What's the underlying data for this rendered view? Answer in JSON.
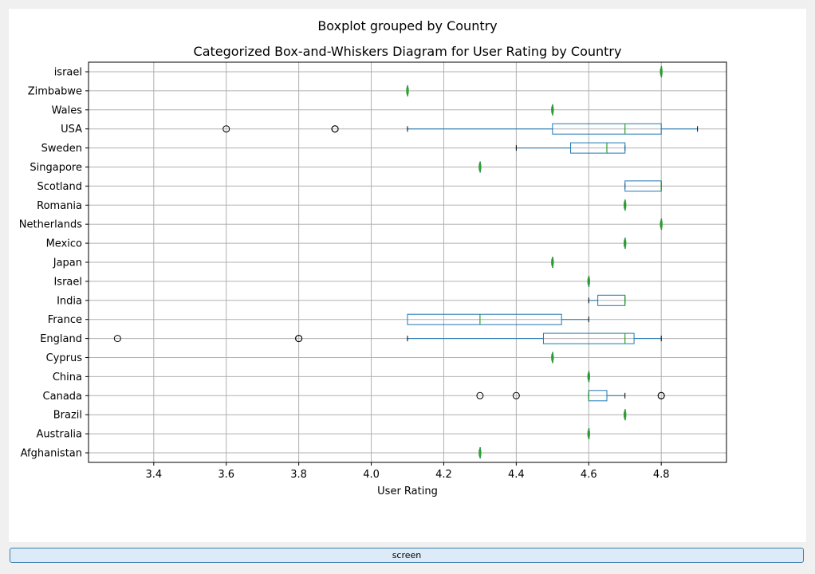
{
  "figure": {
    "suptitle": "Boxplot grouped by Country",
    "screen_button_label": "screen"
  },
  "chart_data": {
    "type": "boxplot",
    "orientation": "horizontal",
    "title": "Categorized Box-and-Whiskers Diagram for User Rating by Country",
    "xlabel": "User Rating",
    "ylabel": "",
    "xlim": [
      3.22,
      4.98
    ],
    "xticks": [
      "3.4",
      "3.6",
      "3.8",
      "4.0",
      "4.2",
      "4.4",
      "4.6",
      "4.8"
    ],
    "grid": true,
    "colors": {
      "box": "#1f77b4",
      "median": "#2ca02c",
      "outlier": "#000000",
      "grid": "#b0b0b0"
    },
    "categories": [
      "Afghanistan",
      "Australia",
      "Brazil",
      "Canada",
      "China",
      "Cyprus",
      "England",
      "France",
      "India",
      "Israel",
      "Japan",
      "Mexico",
      "Netherlands",
      "Romania",
      "Scotland",
      "Singapore",
      "Sweden",
      "USA",
      "Wales",
      "Zimbabwe",
      "israel"
    ],
    "boxes": [
      {
        "country": "Afghanistan",
        "whislo": 4.3,
        "q1": 4.3,
        "median": 4.3,
        "q3": 4.3,
        "whishi": 4.3,
        "fliers": []
      },
      {
        "country": "Australia",
        "whislo": 4.6,
        "q1": 4.6,
        "median": 4.6,
        "q3": 4.6,
        "whishi": 4.6,
        "fliers": []
      },
      {
        "country": "Brazil",
        "whislo": 4.7,
        "q1": 4.7,
        "median": 4.7,
        "q3": 4.7,
        "whishi": 4.7,
        "fliers": []
      },
      {
        "country": "Canada",
        "whislo": 4.6,
        "q1": 4.6,
        "median": 4.6,
        "q3": 4.65,
        "whishi": 4.7,
        "fliers": [
          4.3,
          4.4,
          4.8,
          4.8
        ]
      },
      {
        "country": "China",
        "whislo": 4.6,
        "q1": 4.6,
        "median": 4.6,
        "q3": 4.6,
        "whishi": 4.6,
        "fliers": []
      },
      {
        "country": "Cyprus",
        "whislo": 4.5,
        "q1": 4.5,
        "median": 4.5,
        "q3": 4.5,
        "whishi": 4.5,
        "fliers": []
      },
      {
        "country": "England",
        "whislo": 4.1,
        "q1": 4.475,
        "median": 4.7,
        "q3": 4.725,
        "whishi": 4.8,
        "fliers": [
          3.3,
          3.8,
          3.8
        ]
      },
      {
        "country": "France",
        "whislo": 4.1,
        "q1": 4.1,
        "median": 4.3,
        "q3": 4.525,
        "whishi": 4.6,
        "fliers": []
      },
      {
        "country": "India",
        "whislo": 4.6,
        "q1": 4.625,
        "median": 4.7,
        "q3": 4.7,
        "whishi": 4.7,
        "fliers": []
      },
      {
        "country": "Israel",
        "whislo": 4.6,
        "q1": 4.6,
        "median": 4.6,
        "q3": 4.6,
        "whishi": 4.6,
        "fliers": []
      },
      {
        "country": "Japan",
        "whislo": 4.5,
        "q1": 4.5,
        "median": 4.5,
        "q3": 4.5,
        "whishi": 4.5,
        "fliers": []
      },
      {
        "country": "Mexico",
        "whislo": 4.7,
        "q1": 4.7,
        "median": 4.7,
        "q3": 4.7,
        "whishi": 4.7,
        "fliers": []
      },
      {
        "country": "Netherlands",
        "whislo": 4.8,
        "q1": 4.8,
        "median": 4.8,
        "q3": 4.8,
        "whishi": 4.8,
        "fliers": []
      },
      {
        "country": "Romania",
        "whislo": 4.7,
        "q1": 4.7,
        "median": 4.7,
        "q3": 4.7,
        "whishi": 4.7,
        "fliers": []
      },
      {
        "country": "Scotland",
        "whislo": 4.7,
        "q1": 4.7,
        "median": 4.8,
        "q3": 4.8,
        "whishi": 4.8,
        "fliers": []
      },
      {
        "country": "Singapore",
        "whislo": 4.3,
        "q1": 4.3,
        "median": 4.3,
        "q3": 4.3,
        "whishi": 4.3,
        "fliers": []
      },
      {
        "country": "Sweden",
        "whislo": 4.4,
        "q1": 4.55,
        "median": 4.65,
        "q3": 4.7,
        "whishi": 4.7,
        "fliers": []
      },
      {
        "country": "USA",
        "whislo": 4.1,
        "q1": 4.5,
        "median": 4.7,
        "q3": 4.8,
        "whishi": 4.9,
        "fliers": [
          3.6,
          3.9,
          3.9
        ]
      },
      {
        "country": "Wales",
        "whislo": 4.5,
        "q1": 4.5,
        "median": 4.5,
        "q3": 4.5,
        "whishi": 4.5,
        "fliers": []
      },
      {
        "country": "Zimbabwe",
        "whislo": 4.1,
        "q1": 4.1,
        "median": 4.1,
        "q3": 4.1,
        "whishi": 4.1,
        "fliers": []
      },
      {
        "country": "israel",
        "whislo": 4.8,
        "q1": 4.8,
        "median": 4.8,
        "q3": 4.8,
        "whishi": 4.8,
        "fliers": []
      }
    ]
  }
}
